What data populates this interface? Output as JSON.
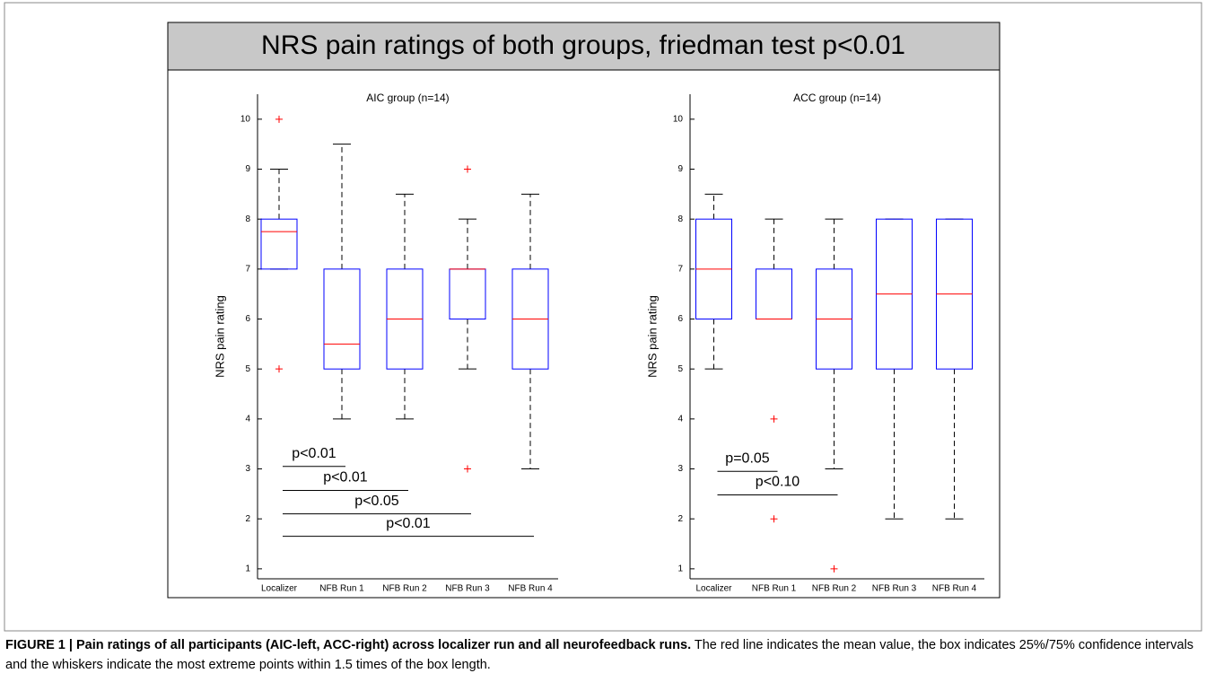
{
  "figure_title": "NRS pain ratings of both groups, friedman test p<0.01",
  "caption_bold": "FIGURE 1 | Pain ratings of all participants (AIC-left, ACC-right) across localizer run and all neurofeedback runs.",
  "caption_text": " The red line indicates the mean value, the box indicates 25%/75% confidence intervals and the whiskers indicate the most extreme points within 1.5 times of the box length.",
  "chart_data": [
    {
      "type": "box",
      "title": "AIC group (n=14)",
      "ylabel": "NRS pain rating",
      "categories": [
        "Localizer",
        "NFB Run 1",
        "NFB Run 2",
        "NFB Run 3",
        "NFB Run 4"
      ],
      "boxes": [
        {
          "whislo": 7,
          "q1": 7,
          "med": 7.75,
          "q3": 8,
          "whishi": 9,
          "fliers": [
            10,
            5
          ]
        },
        {
          "whislo": 4,
          "q1": 5,
          "med": 5.5,
          "q3": 7,
          "whishi": 9.5,
          "fliers": []
        },
        {
          "whislo": 4,
          "q1": 5,
          "med": 6,
          "q3": 7,
          "whishi": 8.5,
          "fliers": []
        },
        {
          "whislo": 5,
          "q1": 6,
          "med": 7,
          "q3": 7,
          "whishi": 8,
          "fliers": [
            9,
            3
          ]
        },
        {
          "whislo": 3,
          "q1": 5,
          "med": 6,
          "q3": 7,
          "whishi": 8.5,
          "fliers": []
        }
      ],
      "box_color": "#0000ff",
      "median_color": "#ff0000",
      "whisker_color": "#000000",
      "flier_color": "#ff0000",
      "ylim": [
        0.8,
        10.5
      ],
      "yticks": [
        1,
        2,
        3,
        4,
        5,
        6,
        7,
        8,
        9,
        10
      ],
      "annotations": [
        {
          "text": "p<0.01",
          "between": [
            0,
            1
          ],
          "y": 3.05
        },
        {
          "text": "p<0.01",
          "between": [
            0,
            2
          ],
          "y": 2.57
        },
        {
          "text": "p<0.05",
          "between": [
            0,
            3
          ],
          "y": 2.1
        },
        {
          "text": "p<0.01",
          "between": [
            0,
            4
          ],
          "y": 1.65
        }
      ]
    },
    {
      "type": "box",
      "title": "ACC group (n=14)",
      "ylabel": "NRS pain rating",
      "categories": [
        "Localizer",
        "NFB Run 1",
        "NFB Run 2",
        "NFB Run 3",
        "NFB Run 4"
      ],
      "boxes": [
        {
          "whislo": 5,
          "q1": 6,
          "med": 7,
          "q3": 8,
          "whishi": 8.5,
          "fliers": []
        },
        {
          "whislo": 6,
          "q1": 6,
          "med": 6,
          "q3": 7,
          "whishi": 8,
          "fliers": [
            4,
            2
          ]
        },
        {
          "whislo": 3,
          "q1": 5,
          "med": 6,
          "q3": 7,
          "whishi": 8,
          "fliers": [
            1
          ]
        },
        {
          "whislo": 2,
          "q1": 5,
          "med": 6.5,
          "q3": 8,
          "whishi": 8,
          "fliers": []
        },
        {
          "whislo": 2,
          "q1": 5,
          "med": 6.5,
          "q3": 8,
          "whishi": 8,
          "fliers": []
        }
      ],
      "box_color": "#0000ff",
      "median_color": "#ff0000",
      "whisker_color": "#000000",
      "flier_color": "#ff0000",
      "ylim": [
        0.8,
        10.5
      ],
      "yticks": [
        1,
        2,
        3,
        4,
        5,
        6,
        7,
        8,
        9,
        10
      ],
      "annotations": [
        {
          "text": "p=0.05",
          "between": [
            0,
            1
          ],
          "y": 2.95
        },
        {
          "text": "p<0.10",
          "between": [
            0,
            2
          ],
          "y": 2.48
        }
      ]
    }
  ]
}
